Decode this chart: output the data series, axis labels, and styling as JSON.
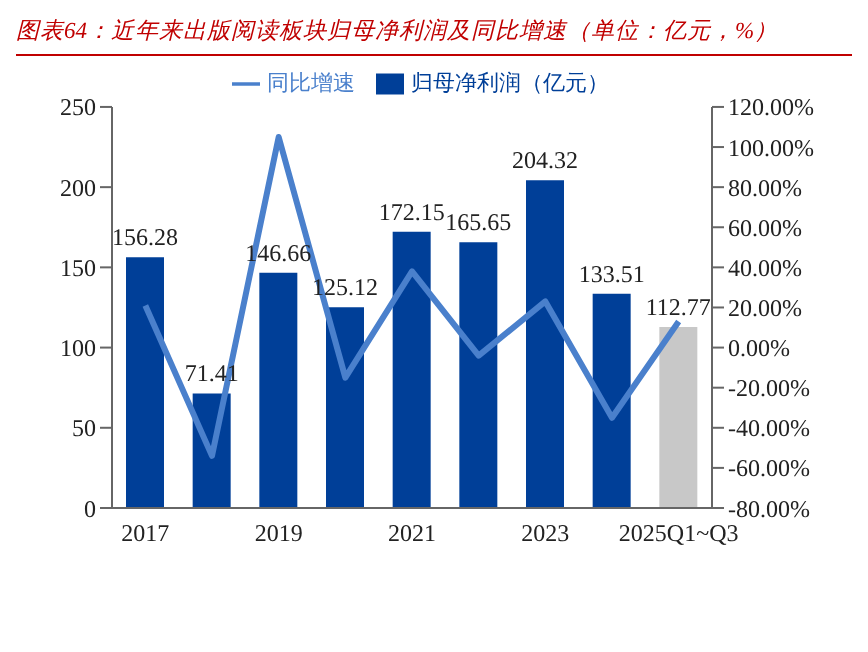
{
  "chart_data": {
    "type": "bar",
    "title": "图表64：近年来出版阅读板块归母净利润及同比增速（单位：亿元，%）",
    "categories": [
      "2017",
      null,
      "2019",
      null,
      "2021",
      null,
      "2023",
      null,
      "2025Q1~Q3"
    ],
    "series": [
      {
        "name": "归母净利润（亿元）",
        "color": "#003f98",
        "colors": [
          "#003f98",
          "#003f98",
          "#003f98",
          "#003f98",
          "#003f98",
          "#003f98",
          "#003f98",
          "#003f98",
          "#c8c8c8"
        ],
        "values": [
          156.28,
          71.41,
          146.66,
          125.12,
          172.15,
          165.65,
          204.32,
          133.51,
          112.77
        ],
        "value_labels": [
          "156.28",
          "71.41",
          "146.66",
          "125.12",
          "172.15",
          "165.65",
          "204.32",
          "133.51",
          "112.77"
        ]
      },
      {
        "name": "同比增速",
        "type": "line",
        "axis": "y2",
        "color": "#4a80cc",
        "values": [
          21,
          -54,
          105,
          -15,
          38,
          -4,
          23,
          -35,
          13
        ]
      }
    ],
    "ylim": [
      0,
      250
    ],
    "yticks": [
      0,
      50,
      100,
      150,
      200,
      250
    ],
    "y2lim": [
      -80,
      120
    ],
    "y2ticks": [
      {
        "value": -80,
        "label": "-80.00%"
      },
      {
        "value": -60,
        "label": "-60.00%"
      },
      {
        "value": -40,
        "label": "-40.00%"
      },
      {
        "value": -20,
        "label": "-20.00%"
      },
      {
        "value": 0,
        "label": "0.00%"
      },
      {
        "value": 20,
        "label": "20.00%"
      },
      {
        "value": 40,
        "label": "40.00%"
      },
      {
        "value": 60,
        "label": "60.00%"
      },
      {
        "value": 80,
        "label": "80.00%"
      },
      {
        "value": 100,
        "label": "100.00%"
      },
      {
        "value": 120,
        "label": "120.00%"
      }
    ],
    "legend": "top",
    "grid": false,
    "marker": "none"
  }
}
